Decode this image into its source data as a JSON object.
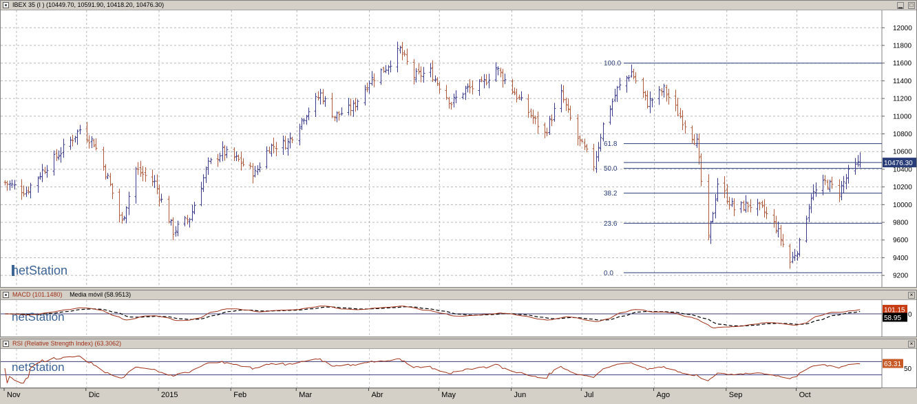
{
  "panes": {
    "price": {
      "title": "IBEX 35 (I ) (10449.70, 10591.90, 10418.20, 10476.30)",
      "last_label": "10476.30",
      "y_ticks": [
        9200,
        9400,
        9600,
        9800,
        10000,
        10200,
        10400,
        10600,
        10800,
        11000,
        11200,
        11400,
        11600,
        11800,
        12000
      ],
      "watermark": "netStation"
    },
    "macd": {
      "title_macd": "MACD (101.1480)",
      "title_ma": "Media móvil (58.9513)",
      "macd_label": "101.15",
      "ma_label": "58.95",
      "zero_label": "0",
      "watermark": "netStation"
    },
    "rsi": {
      "title": "RSI (Relative Strength Index) (63.3062)",
      "rsi_label": "63.31",
      "level_label": "50",
      "watermark": "netStation"
    }
  },
  "window_buttons": {
    "minimize": "▁",
    "maximize": "□",
    "close": "×"
  },
  "fibonacci": [
    {
      "label": "100.0",
      "value": 11600
    },
    {
      "label": "61.8",
      "value": 10690
    },
    {
      "label": "50.0",
      "value": 10410
    },
    {
      "label": "38.2",
      "value": 10130
    },
    {
      "label": "23.6",
      "value": 9790
    },
    {
      "label": "0.0",
      "value": 9230
    }
  ],
  "colors": {
    "up": "#3a3a8c",
    "down": "#b05a3c",
    "macd": "#a03018",
    "signal": "#000000",
    "rsi": "#a03018",
    "fib": "#283c78",
    "last_bg": "#283c78",
    "macd_bg": "#c83c14",
    "rsi_bg": "#c85a28"
  },
  "x_axis_labels": [
    "Nov",
    "Dic",
    "2015",
    "Feb",
    "Mar",
    "Abr",
    "May",
    "Jun",
    "Jul",
    "Ago",
    "Sep",
    "Oct"
  ],
  "chart_data": {
    "type": "bar",
    "subtype": "ohlc",
    "title": "IBEX 35 (I ) (10449.70, 10591.90, 10418.20, 10476.30)",
    "ylim": [
      9100,
      12150
    ],
    "x_range": [
      "2014-10-27",
      "2015-10-30"
    ],
    "grid": true,
    "anchors": [
      [
        "2014-10-27",
        10250
      ],
      [
        "2014-11-05",
        10150
      ],
      [
        "2014-11-12",
        10380
      ],
      [
        "2014-11-20",
        10600
      ],
      [
        "2014-11-28",
        10850
      ],
      [
        "2014-12-04",
        10700
      ],
      [
        "2014-12-10",
        10300
      ],
      [
        "2014-12-16",
        9800
      ],
      [
        "2014-12-22",
        10400
      ],
      [
        "2014-12-30",
        10250
      ],
      [
        "2015-01-07",
        9700
      ],
      [
        "2015-01-14",
        9850
      ],
      [
        "2015-01-22",
        10450
      ],
      [
        "2015-01-28",
        10600
      ],
      [
        "2015-02-04",
        10500
      ],
      [
        "2015-02-11",
        10350
      ],
      [
        "2015-02-17",
        10650
      ],
      [
        "2015-02-25",
        10700
      ],
      [
        "2015-03-04",
        11000
      ],
      [
        "2015-03-11",
        11250
      ],
      [
        "2015-03-17",
        11000
      ],
      [
        "2015-03-25",
        11100
      ],
      [
        "2015-04-01",
        11400
      ],
      [
        "2015-04-08",
        11550
      ],
      [
        "2015-04-14",
        11750
      ],
      [
        "2015-04-20",
        11450
      ],
      [
        "2015-04-27",
        11500
      ],
      [
        "2015-05-06",
        11150
      ],
      [
        "2015-05-12",
        11300
      ],
      [
        "2015-05-19",
        11350
      ],
      [
        "2015-05-25",
        11550
      ],
      [
        "2015-06-01",
        11300
      ],
      [
        "2015-06-08",
        11050
      ],
      [
        "2015-06-15",
        10800
      ],
      [
        "2015-06-22",
        11250
      ],
      [
        "2015-06-29",
        10750
      ],
      [
        "2015-07-06",
        10450
      ],
      [
        "2015-07-10",
        10900
      ],
      [
        "2015-07-16",
        11300
      ],
      [
        "2015-07-22",
        11500
      ],
      [
        "2015-07-29",
        11150
      ],
      [
        "2015-08-05",
        11300
      ],
      [
        "2015-08-12",
        11000
      ],
      [
        "2015-08-19",
        10700
      ],
      [
        "2015-08-24",
        9600
      ],
      [
        "2015-08-28",
        10250
      ],
      [
        "2015-09-04",
        9950
      ],
      [
        "2015-09-10",
        10000
      ],
      [
        "2015-09-16",
        9950
      ],
      [
        "2015-09-22",
        9750
      ],
      [
        "2015-09-28",
        9350
      ],
      [
        "2015-10-02",
        9550
      ],
      [
        "2015-10-07",
        10100
      ],
      [
        "2015-10-13",
        10250
      ],
      [
        "2015-10-19",
        10150
      ],
      [
        "2015-10-23",
        10350
      ],
      [
        "2015-10-28",
        10476
      ]
    ],
    "last": {
      "open": 10449.7,
      "high": 10591.9,
      "low": 10418.2,
      "close": 10476.3
    },
    "indicators": {
      "macd": {
        "last": 101.148,
        "ylim": [
          -500,
          300
        ]
      },
      "macd_signal": {
        "name": "Media móvil",
        "last": 58.9513
      },
      "rsi": {
        "last": 63.3062,
        "ylim": [
          0,
          100
        ],
        "level": 50
      }
    }
  }
}
